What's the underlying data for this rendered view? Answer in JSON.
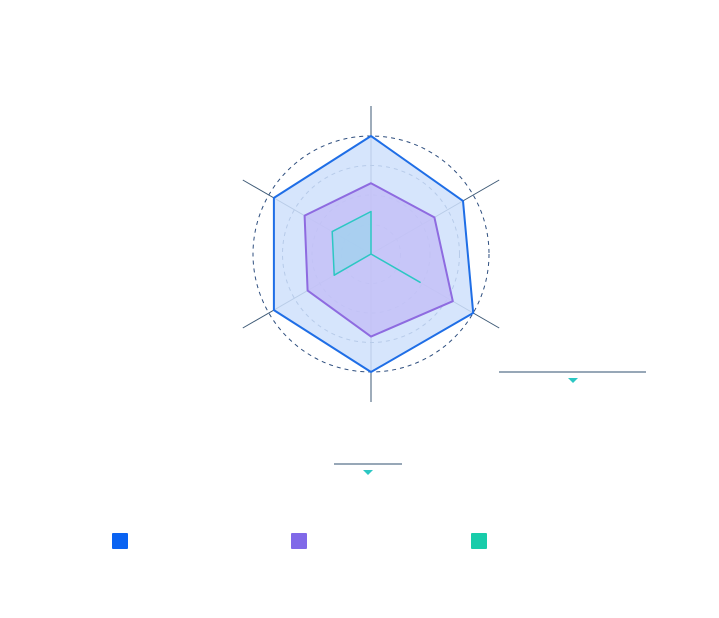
{
  "chart_data": {
    "type": "radar",
    "title": "",
    "axes": [
      "",
      "",
      "",
      "",
      "",
      ""
    ],
    "max": 100,
    "grid": {
      "style": "dashed-circles",
      "levels": [
        0.25,
        0.5,
        0.75,
        1.0
      ]
    },
    "series": [
      {
        "values": [
          100,
          90,
          100,
          100,
          95,
          95
        ],
        "color": "#1f6ee6",
        "fill": "#cfe0fb"
      },
      {
        "values": [
          60,
          62,
          80,
          70,
          62,
          65
        ],
        "color": "#8e6be0",
        "fill": "#c4c1f7"
      },
      {
        "values": [
          36,
          0,
          48,
          0,
          36,
          38
        ],
        "color": "#2cc7c3",
        "fill": "#9fd2ee"
      }
    ],
    "legend": {
      "position": "bottom",
      "colors": [
        "#0a63f2",
        "#8069e8",
        "#18ccaa"
      ]
    }
  }
}
